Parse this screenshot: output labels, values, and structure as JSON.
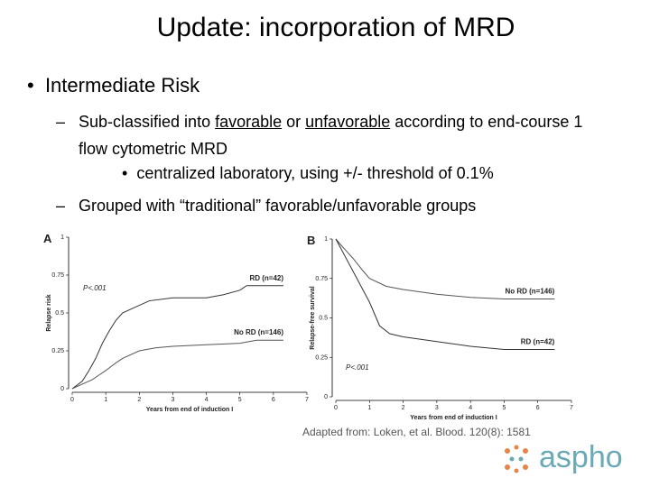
{
  "slide": {
    "title": "Update: incorporation of MRD",
    "bullet": "Intermediate Risk",
    "sub1_runs": [
      {
        "text": "Sub-classified into ",
        "underline": false
      },
      {
        "text": "favorable",
        "underline": true
      },
      {
        "text": " or ",
        "underline": false
      },
      {
        "text": "unfavorable",
        "underline": true
      },
      {
        "text": " according to end-course 1 flow cytometric MRD",
        "underline": false
      }
    ],
    "sub1_detail": "centralized laboratory, using +/- threshold of 0.1%",
    "sub2": "Grouped with “traditional” favorable/unfavorable groups",
    "citation": "Adapted from: Loken, et al. Blood. 120(8): 1581",
    "logo": "aspho"
  },
  "chart_data": [
    {
      "type": "line",
      "panel": "A",
      "annotation": "P<.001",
      "xlabel": "Years from end of induction I",
      "ylabel": "Relapse risk",
      "xlim": [
        0,
        7
      ],
      "ylim": [
        0,
        1
      ],
      "xticks": [
        0,
        1,
        2,
        3,
        4,
        5,
        6,
        7
      ],
      "yticks": [
        0,
        0.25,
        0.5,
        0.75,
        1
      ],
      "series": [
        {
          "name": "RD (n=42)",
          "color": "#333333",
          "x": [
            0,
            0.3,
            0.5,
            0.7,
            0.9,
            1.1,
            1.3,
            1.5,
            1.8,
            2.0,
            2.3,
            3.0,
            4.0,
            4.5,
            5.0,
            5.2,
            6.3
          ],
          "values": [
            0,
            0.05,
            0.12,
            0.2,
            0.3,
            0.38,
            0.45,
            0.5,
            0.53,
            0.55,
            0.58,
            0.6,
            0.6,
            0.62,
            0.65,
            0.68,
            0.68
          ]
        },
        {
          "name": "No RD (n=146)",
          "color": "#555555",
          "x": [
            0,
            0.3,
            0.6,
            0.8,
            1.0,
            1.3,
            1.5,
            2.0,
            2.5,
            3.0,
            4.0,
            5.0,
            5.5,
            6.3
          ],
          "values": [
            0,
            0.03,
            0.06,
            0.09,
            0.12,
            0.17,
            0.2,
            0.25,
            0.27,
            0.28,
            0.29,
            0.3,
            0.32,
            0.32
          ]
        }
      ]
    },
    {
      "type": "line",
      "panel": "B",
      "annotation": "P<.001",
      "xlabel": "Years from end of induction I",
      "ylabel": "Relapse-free survival",
      "xlim": [
        0,
        7
      ],
      "ylim": [
        0,
        1
      ],
      "xticks": [
        0,
        1,
        2,
        3,
        4,
        5,
        6,
        7
      ],
      "yticks": [
        0,
        0.25,
        0.5,
        0.75,
        1
      ],
      "series": [
        {
          "name": "No RD (n=146)",
          "color": "#555555",
          "x": [
            0,
            0.2,
            0.5,
            0.8,
            1.0,
            1.5,
            2.0,
            3.0,
            4.0,
            5.0,
            6.5
          ],
          "values": [
            1,
            0.95,
            0.88,
            0.8,
            0.75,
            0.7,
            0.68,
            0.65,
            0.63,
            0.62,
            0.62
          ]
        },
        {
          "name": "RD (n=42)",
          "color": "#333333",
          "x": [
            0,
            0.2,
            0.5,
            0.8,
            1.0,
            1.3,
            1.6,
            2.0,
            3.0,
            4.0,
            5.0,
            6.5
          ],
          "values": [
            1,
            0.92,
            0.8,
            0.68,
            0.6,
            0.45,
            0.4,
            0.38,
            0.35,
            0.32,
            0.3,
            0.3
          ]
        }
      ]
    }
  ]
}
